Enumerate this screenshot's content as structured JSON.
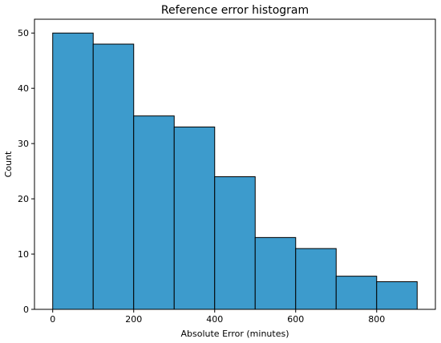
{
  "chart_data": {
    "type": "bar",
    "title": "Reference error histogram",
    "xlabel": "Absolute Error (minutes)",
    "ylabel": "Count",
    "bins": [
      {
        "x0": 0,
        "x1": 100,
        "count": 50
      },
      {
        "x0": 100,
        "x1": 200,
        "count": 48
      },
      {
        "x0": 200,
        "x1": 300,
        "count": 35
      },
      {
        "x0": 300,
        "x1": 400,
        "count": 33
      },
      {
        "x0": 400,
        "x1": 500,
        "count": 24
      },
      {
        "x0": 500,
        "x1": 600,
        "count": 13
      },
      {
        "x0": 600,
        "x1": 700,
        "count": 11
      },
      {
        "x0": 700,
        "x1": 800,
        "count": 6
      },
      {
        "x0": 800,
        "x1": 900,
        "count": 5
      }
    ],
    "xlim": [
      -45,
      945
    ],
    "ylim": [
      0,
      52.5
    ],
    "xticks": [
      "0",
      "200",
      "400",
      "600",
      "800"
    ],
    "yticks": [
      "0",
      "10",
      "20",
      "30",
      "40",
      "50"
    ],
    "grid": false,
    "bar_color": "#3d9bcc"
  }
}
